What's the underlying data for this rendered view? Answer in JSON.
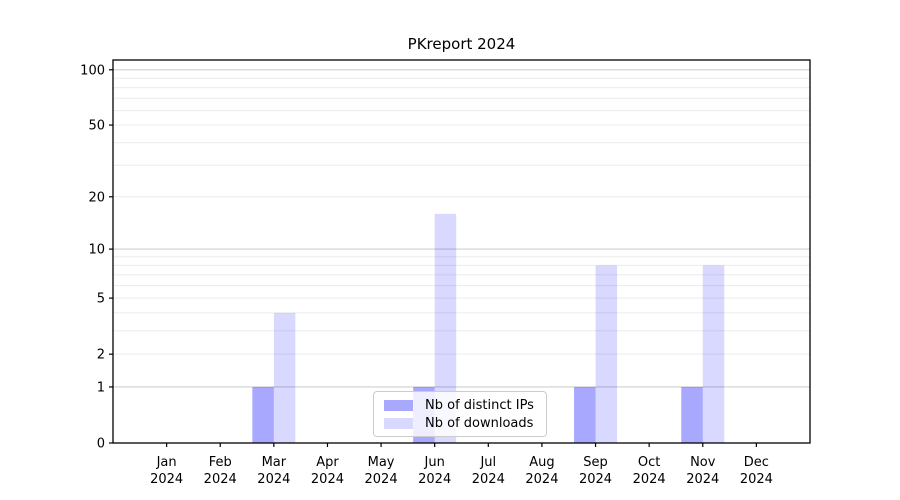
{
  "chart_data": {
    "type": "bar",
    "title": "PKreport 2024",
    "months": [
      "Jan",
      "Feb",
      "Mar",
      "Apr",
      "May",
      "Jun",
      "Jul",
      "Aug",
      "Sep",
      "Oct",
      "Nov",
      "Dec"
    ],
    "year_label": "2024",
    "series": [
      {
        "name": "Nb of distinct IPs",
        "color": "#0000ff",
        "alpha": 0.34,
        "values": [
          0,
          0,
          1,
          0,
          0,
          1,
          0,
          0,
          1,
          0,
          1,
          0
        ]
      },
      {
        "name": "Nb of downloads",
        "color": "#0000ff",
        "alpha": 0.15,
        "values": [
          0,
          0,
          4,
          0,
          0,
          16,
          0,
          0,
          8,
          0,
          8,
          0
        ]
      }
    ],
    "yscale": "log1p",
    "ylim": [
      0,
      113
    ],
    "yticks": [
      0,
      1,
      2,
      5,
      10,
      20,
      50,
      100
    ],
    "grid": {
      "major": [
        1,
        10,
        100
      ],
      "minor": [
        2,
        3,
        4,
        5,
        6,
        7,
        8,
        9,
        20,
        30,
        40,
        50,
        60,
        70,
        80,
        90
      ],
      "major_color": "#cfcfcf",
      "minor_color": "#ececec"
    },
    "legend_position": "lower center",
    "axis_color": "#000000"
  }
}
